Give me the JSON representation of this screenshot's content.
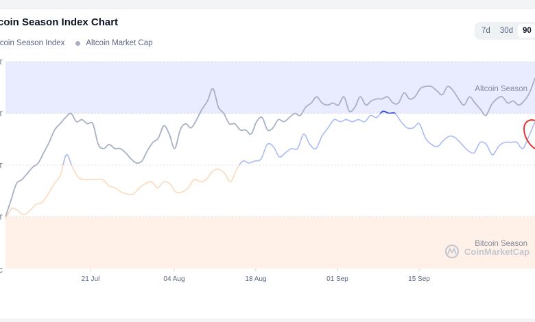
{
  "header": {
    "title": "tcoin Season Index Chart"
  },
  "legend": [
    {
      "label": "ltcoin Season Index",
      "color": "#8f9bb5"
    },
    {
      "label": "Altcoin Market Cap",
      "color": "#a6b0c3"
    }
  ],
  "range_tabs": [
    {
      "label": "7d",
      "active": false
    },
    {
      "label": "30d",
      "active": false
    },
    {
      "label": "90",
      "active": true
    }
  ],
  "watermark": {
    "text": "CoinMarketCap",
    "icon": "coinmarketcap-logo-icon"
  },
  "colors": {
    "altcoin_zone": "#e9ebff",
    "bitcoin_zone": "#fff1e8",
    "market_cap_line": "#a6b0c3",
    "index_line_blue": "#a9baf5",
    "index_line_orange": "#fcd9bb",
    "index_highlight": "#2742d9",
    "annotation": "#e3342f"
  },
  "chart_data": {
    "type": "line",
    "title": "",
    "xlabel": "",
    "ylabel": "",
    "y_ticks": [
      "T",
      "T",
      "T",
      "T",
      "C"
    ],
    "x_ticks": [
      "21 Jul",
      "04 Aug",
      "18 Aug",
      "01 Sep",
      "15 Sep"
    ],
    "zones": [
      {
        "label": "Altcoin Season",
        "from": 75,
        "to": 100
      },
      {
        "label": "Bitcoin Season",
        "from": 0,
        "to": 25
      }
    ],
    "ylim": [
      0,
      100
    ],
    "grid": true,
    "legend_position": "top-left",
    "series": [
      {
        "key": "market_cap",
        "values": [
          25,
          33,
          41,
          43,
          46,
          49,
          51,
          56,
          61,
          67,
          70,
          73,
          75,
          71,
          72,
          70,
          70,
          60,
          58,
          60,
          58,
          58,
          56,
          53,
          51,
          52,
          57,
          61,
          63,
          69,
          65,
          58,
          67,
          70,
          68,
          72,
          77,
          81,
          87,
          78,
          75,
          70,
          70,
          67,
          67,
          65,
          71,
          73,
          67,
          68,
          72,
          71,
          73,
          75,
          74,
          78,
          80,
          83,
          80,
          79,
          80,
          79,
          83,
          76,
          78,
          83,
          79,
          81,
          82,
          82,
          83,
          80,
          80,
          85,
          82,
          83,
          87,
          88,
          88,
          86,
          84,
          88,
          86,
          82,
          79,
          83,
          80,
          77,
          74,
          79,
          82,
          83,
          80,
          81,
          79,
          81,
          85,
          92
        ],
        "color": "#a6b0c3"
      },
      {
        "key": "season_index",
        "values": [
          24,
          29,
          28,
          26,
          28,
          31,
          32,
          36,
          41,
          45,
          55,
          49,
          44,
          43,
          43,
          43,
          43,
          40,
          39,
          37,
          36,
          36,
          39,
          41,
          42,
          39,
          42,
          41,
          37,
          37,
          39,
          43,
          42,
          43,
          47,
          48,
          46,
          42,
          48,
          52,
          51,
          52,
          53,
          60,
          59,
          54,
          56,
          58,
          58,
          65,
          60,
          58,
          64,
          68,
          72,
          71,
          72,
          71,
          72,
          71,
          74,
          73,
          76,
          75,
          75,
          71,
          68,
          68,
          70,
          63,
          60,
          59,
          62,
          64,
          63,
          60,
          57,
          56,
          61,
          60,
          55,
          59,
          61,
          61,
          61,
          58,
          64,
          71
        ],
        "color_blue": "#a9baf5",
        "color_orange": "#fcd9bb",
        "blue_above": 50
      }
    ]
  }
}
